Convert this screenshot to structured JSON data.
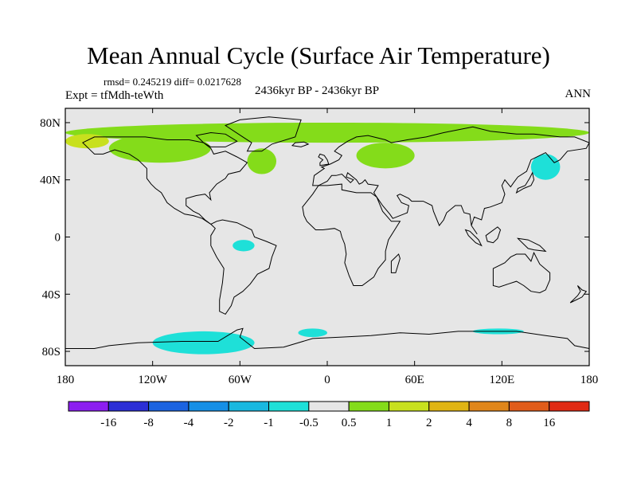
{
  "chart_data": {
    "type": "heatmap",
    "title": "Mean Annual Cycle (Surface Air Temperature)",
    "stats_line": "rmsd= 0.245219 diff= 0.0217628",
    "experiment_label": "Expt = tfMdh-teWth",
    "period_label": "2436kyr BP - 2436kyr BP",
    "season_label": "ANN",
    "x_ticks": [
      "180",
      "120W",
      "60W",
      "0",
      "60E",
      "120E",
      "180"
    ],
    "x_tick_values": [
      -180,
      -120,
      -60,
      0,
      60,
      120,
      180
    ],
    "y_ticks": [
      "80N",
      "40N",
      "0",
      "40S",
      "80S"
    ],
    "y_tick_values": [
      80,
      40,
      0,
      -40,
      -80
    ],
    "xlim": [
      -180,
      180
    ],
    "ylim": [
      -90,
      90
    ],
    "background_value": "-0.5 to 0.5",
    "colorbar": {
      "labels": [
        "-16",
        "-8",
        "-4",
        "-2",
        "-1",
        "-0.5",
        "0.5",
        "1",
        "2",
        "4",
        "8",
        "16"
      ],
      "colors": [
        "#8c1ef0",
        "#2c2fd6",
        "#1b63e0",
        "#168fe6",
        "#19b8e0",
        "#1ee0d8",
        "#e6e6e6",
        "#84dc1a",
        "#c8e01e",
        "#e0b414",
        "#e0861a",
        "#e05c1a",
        "#e02a14"
      ]
    },
    "anomaly_regions": [
      {
        "name": "arctic-band",
        "level": "0.5 to 1",
        "lon": [
          -180,
          180
        ],
        "lat": [
          66,
          80
        ]
      },
      {
        "name": "siberia-west",
        "level": "1 to 2",
        "lon": [
          -180,
          -150
        ],
        "lat": [
          62,
          72
        ]
      },
      {
        "name": "north-america-north",
        "level": "0.5 to 1",
        "lon": [
          -150,
          -80
        ],
        "lat": [
          52,
          72
        ]
      },
      {
        "name": "north-atlantic",
        "level": "0.5 to 1",
        "lon": [
          -55,
          -35
        ],
        "lat": [
          44,
          62
        ]
      },
      {
        "name": "scandinavia-russia",
        "level": "0.5 to 1",
        "lon": [
          20,
          60
        ],
        "lat": [
          48,
          66
        ]
      },
      {
        "name": "east-asia-coast",
        "level": "-1 to -0.5",
        "lon": [
          140,
          160
        ],
        "lat": [
          40,
          58
        ]
      },
      {
        "name": "brazil",
        "level": "-1 to -0.5",
        "lon": [
          -65,
          -50
        ],
        "lat": [
          -10,
          -2
        ]
      },
      {
        "name": "west-antarctic",
        "level": "-1 to -0.5",
        "lon": [
          -120,
          -50
        ],
        "lat": [
          -82,
          -66
        ]
      },
      {
        "name": "southern-ocean-atlantic",
        "level": "-1 to -0.5",
        "lon": [
          -20,
          0
        ],
        "lat": [
          -70,
          -64
        ]
      },
      {
        "name": "southern-ocean-indian",
        "level": "-1 to -0.5",
        "lon": [
          100,
          135
        ],
        "lat": [
          -68,
          -64
        ]
      }
    ]
  }
}
